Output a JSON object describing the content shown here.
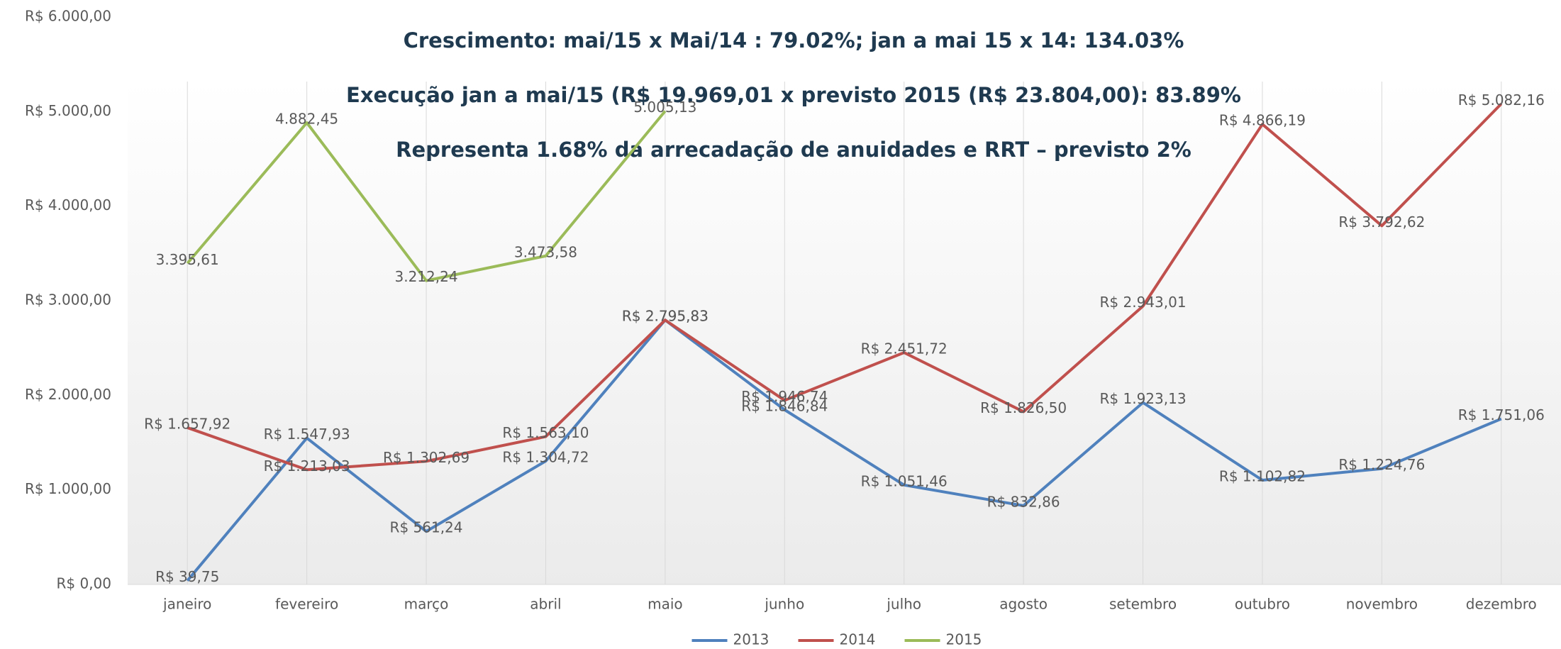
{
  "chart_data": {
    "type": "line",
    "annotations": [
      "Crescimento: mai/15 x Mai/14 : 79.02%; jan a mai 15 x 14: 134.03%",
      "Execução jan a mai/15 (R$ 19.969,01 x previsto 2015 (R$ 23.804,00): 83.89%",
      "Representa 1.68% da arrecadação de anuidades e RRT – previsto 2%"
    ],
    "categories": [
      "janeiro",
      "fevereiro",
      "março",
      "abril",
      "maio",
      "junho",
      "julho",
      "agosto",
      "setembro",
      "outubro",
      "novembro",
      "dezembro"
    ],
    "series": [
      {
        "name": "2013",
        "color": "#4f81bd",
        "values": [
          39.75,
          1547.93,
          561.24,
          1304.72,
          2795.83,
          1846.84,
          1051.46,
          832.86,
          1923.13,
          1102.82,
          1224.76,
          1751.06
        ],
        "value_labels": [
          "R$ 39,75",
          "R$ 1.547,93",
          "R$ 561,24",
          "R$ 1.304,72",
          "R$ 2.795,83",
          "R$ 1.846,84",
          "R$ 1.051,46",
          "R$ 832,86",
          "R$ 1.923,13",
          "R$ 1.102,82",
          "R$ 1.224,76",
          "R$ 1.751,06"
        ]
      },
      {
        "name": "2014",
        "color": "#c0504d",
        "values": [
          1657.92,
          1213.03,
          1302.69,
          1563.1,
          2795.83,
          1946.74,
          2451.72,
          1826.5,
          2943.01,
          4866.19,
          3792.62,
          5082.16
        ],
        "value_labels": [
          "R$ 1.657,92",
          "R$ 1.213,03",
          "R$ 1.302,69",
          "R$ 1.563,10",
          "R$ 2.795,83",
          "R$ 1.946,74",
          "R$ 2.451,72",
          "R$ 1.826,50",
          "R$ 2.943,01",
          "R$ 4.866,19",
          "R$ 3.792,62",
          "R$ 5.082,16"
        ]
      },
      {
        "name": "2015",
        "color": "#9bbb59",
        "values": [
          3395.61,
          4882.45,
          3212.24,
          3473.58,
          5005.13,
          null,
          null,
          null,
          null,
          null,
          null,
          null
        ],
        "value_labels": [
          "3.395,61",
          "4.882,45",
          "3.212,24",
          "3.473,58",
          "5.005,13",
          null,
          null,
          null,
          null,
          null,
          null,
          null
        ]
      }
    ],
    "ylim": [
      0,
      6000
    ],
    "yticks": [
      {
        "value": 0,
        "label": "R$ 0,00"
      },
      {
        "value": 1000,
        "label": "R$ 1.000,00"
      },
      {
        "value": 2000,
        "label": "R$ 2.000,00"
      },
      {
        "value": 3000,
        "label": "R$ 3.000,00"
      },
      {
        "value": 4000,
        "label": "R$ 4.000,00"
      },
      {
        "value": 5000,
        "label": "R$ 5.000,00"
      },
      {
        "value": 6000,
        "label": "R$ 6.000,00"
      }
    ],
    "legend": "bottom"
  }
}
